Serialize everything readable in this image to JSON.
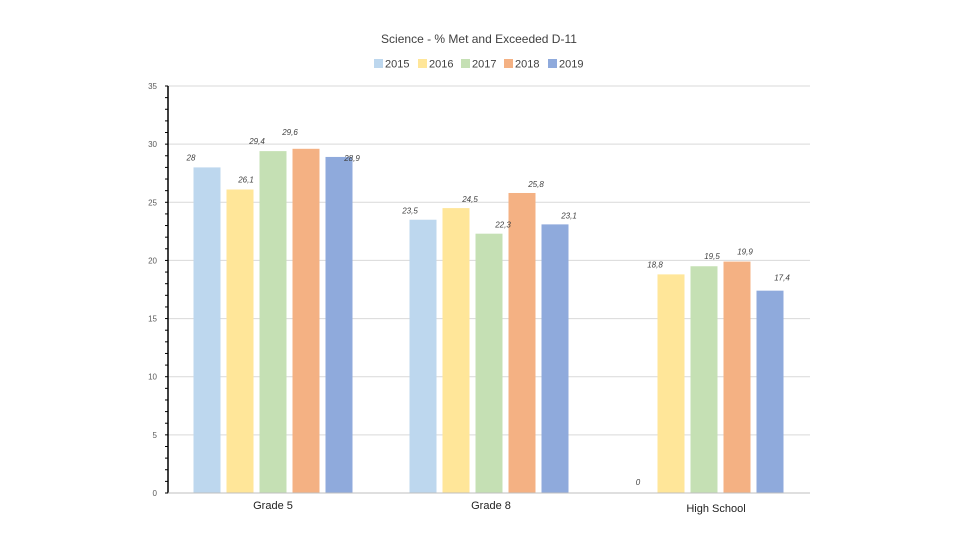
{
  "chart_data": {
    "type": "bar",
    "title": "Science - % Met and Exceeded D-11",
    "categories": [
      "Grade 5",
      "Grade 8",
      "High School"
    ],
    "series": [
      {
        "name": "2015",
        "color": "#bdd7ee",
        "values": [
          28,
          23.5,
          0
        ],
        "labels": [
          "28",
          "23,5",
          "0"
        ]
      },
      {
        "name": "2016",
        "color": "#ffe699",
        "values": [
          26.1,
          24.5,
          18.8
        ],
        "labels": [
          "26,1",
          "24,5",
          "18,8"
        ]
      },
      {
        "name": "2017",
        "color": "#c5e0b4",
        "values": [
          29.4,
          22.3,
          19.5
        ],
        "labels": [
          "29,4",
          "22,3",
          "19,5"
        ]
      },
      {
        "name": "2018",
        "color": "#f4b183",
        "values": [
          29.6,
          25.8,
          19.9
        ],
        "labels": [
          "29,6",
          "25,8",
          "19,9"
        ]
      },
      {
        "name": "2019",
        "color": "#8faadc",
        "values": [
          28.9,
          23.1,
          17.4
        ],
        "labels": [
          "28,9",
          "23,1",
          "17,4"
        ]
      }
    ],
    "yticks": [
      "0",
      "5",
      "10",
      "15",
      "20",
      "25",
      "30",
      "35"
    ],
    "ylim": [
      0,
      35
    ],
    "xlabel": "",
    "ylabel": "",
    "grid": true,
    "legend": "top"
  }
}
